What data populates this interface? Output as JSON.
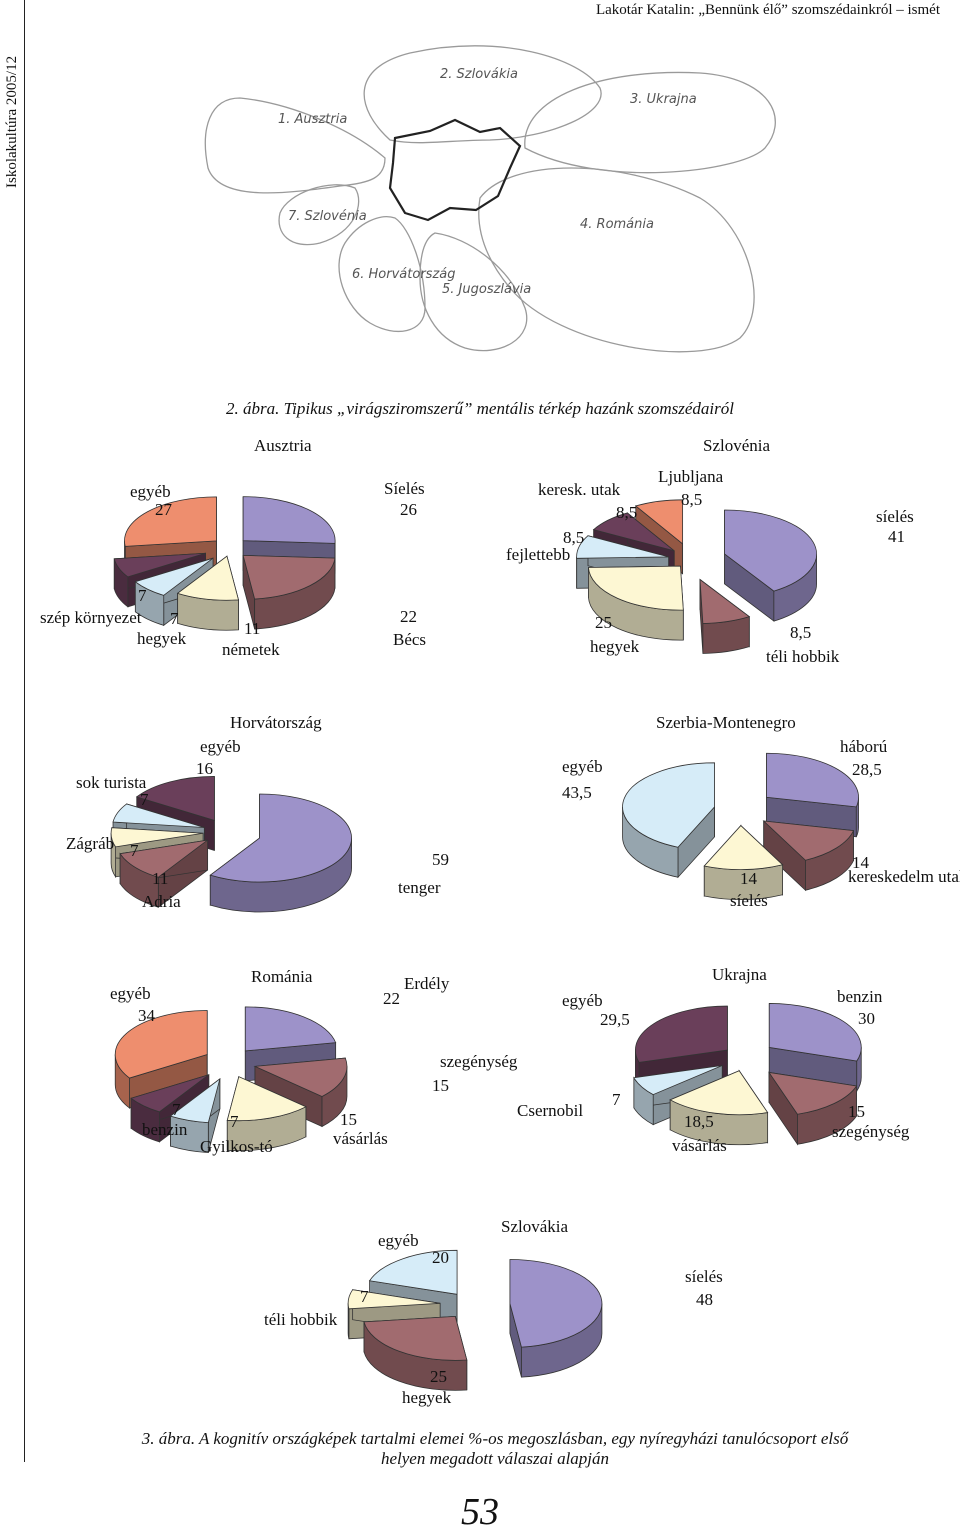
{
  "header": {
    "running_title": "Lakotár Katalin: „Bennünk élő” szomszédainkról – ismét",
    "journal": "Iskolakultúra 2005/12"
  },
  "figure2": {
    "caption": "2. ábra. Tipikus „virágsziromszerű” mentális térkép hazánk szomszédairól",
    "map_labels": [
      "1. Ausztria",
      "2. Szlovákia",
      "3. Ukrajna",
      "4. Románia",
      "5. Jugoszlávia",
      "6. Horvátország",
      "7. Szlovénia"
    ]
  },
  "figure3": {
    "caption_line1": "3. ábra. A kognitív országképek tartalmi elemei %-os megoszlásban, egy nyíregyházi tanulócsoport első",
    "caption_line2": "helyen megadott válaszai alapján"
  },
  "page_number": "53",
  "colors": {
    "lavender": "#9d92c9",
    "mauve": "#a16b6f",
    "cream": "#fdf7d3",
    "lightblue": "#d6ecf8",
    "plum": "#6a3f5a",
    "salmon": "#ee8e6e",
    "grey": "#c5c5c5"
  },
  "chart_data": [
    {
      "type": "pie",
      "title": "Ausztria",
      "slices": [
        {
          "label": "Síelés",
          "value": 26
        },
        {
          "label": "Bécs",
          "value": 22
        },
        {
          "label": "németek",
          "value": 11
        },
        {
          "label": "hegyek",
          "value": 7
        },
        {
          "label": "szép környezet",
          "value": 7
        },
        {
          "label": "egyéb",
          "value": 27
        }
      ]
    },
    {
      "type": "pie",
      "title": "Szlovénia",
      "slices": [
        {
          "label": "síelés",
          "value": 41
        },
        {
          "label": "téli hobbik",
          "value": 8.5
        },
        {
          "label": "hegyek",
          "value": 25
        },
        {
          "label": "fejlettebb",
          "value": 8.5
        },
        {
          "label": "keresk. utak",
          "value": 8.5
        },
        {
          "label": "Ljubljana",
          "value": 8.5
        }
      ]
    },
    {
      "type": "pie",
      "title": "Horvátország",
      "slices": [
        {
          "label": "tenger",
          "value": 59
        },
        {
          "label": "Adria",
          "value": 11
        },
        {
          "label": "Zágráb",
          "value": 7
        },
        {
          "label": "sok turista",
          "value": 7
        },
        {
          "label": "egyéb",
          "value": 16
        }
      ]
    },
    {
      "type": "pie",
      "title": "Szerbia-Montenegro",
      "slices": [
        {
          "label": "háború",
          "value": 28.5
        },
        {
          "label": "kereskedelm utak",
          "value": 14
        },
        {
          "label": "síelés",
          "value": 14
        },
        {
          "label": "egyéb",
          "value": 43.5
        }
      ]
    },
    {
      "type": "pie",
      "title": "Románia",
      "slices": [
        {
          "label": "Erdély",
          "value": 22
        },
        {
          "label": "szegénység",
          "value": 15
        },
        {
          "label": "vásárlás",
          "value": 15
        },
        {
          "label": "Gyilkos-tó",
          "value": 7
        },
        {
          "label": "benzin",
          "value": 7
        },
        {
          "label": "egyéb",
          "value": 34
        }
      ]
    },
    {
      "type": "pie",
      "title": "Ukrajna",
      "slices": [
        {
          "label": "benzin",
          "value": 30
        },
        {
          "label": "szegénység",
          "value": 15
        },
        {
          "label": "vásárlás",
          "value": 18.5
        },
        {
          "label": "Csernobil",
          "value": 7
        },
        {
          "label": "egyéb",
          "value": 29.5
        }
      ]
    },
    {
      "type": "pie",
      "title": "Szlovákia",
      "slices": [
        {
          "label": "síelés",
          "value": 48
        },
        {
          "label": "hegyek",
          "value": 25
        },
        {
          "label": "téli hobbik",
          "value": 7
        },
        {
          "label": "egyéb",
          "value": 20
        }
      ]
    }
  ]
}
